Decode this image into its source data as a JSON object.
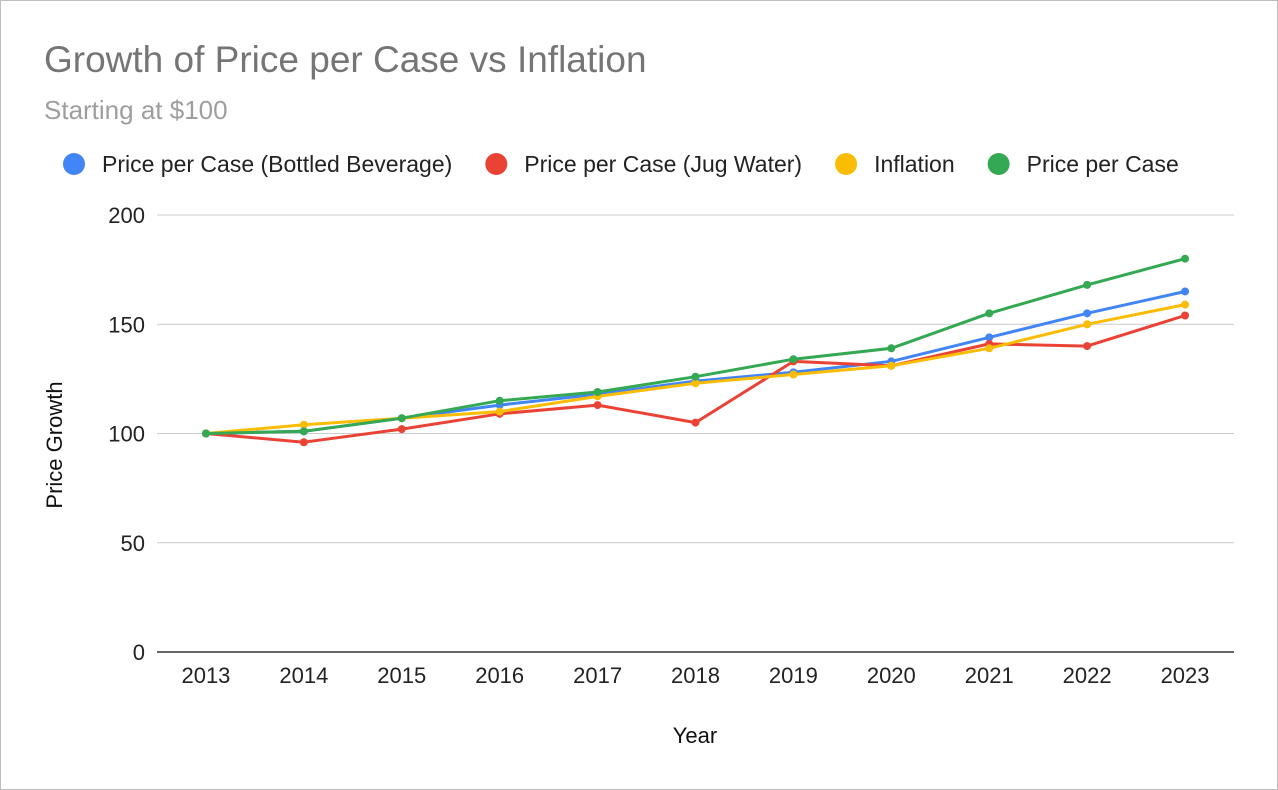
{
  "chart": {
    "title": "Growth of Price per Case vs Inflation",
    "subtitle": "Starting at $100"
  },
  "chart_data": {
    "type": "line",
    "title": "Growth of Price per Case vs Inflation",
    "subtitle": "Starting at $100",
    "xlabel": "Year",
    "ylabel": "Price Growth",
    "categories": [
      "2013",
      "2014",
      "2015",
      "2016",
      "2017",
      "2018",
      "2019",
      "2020",
      "2021",
      "2022",
      "2023"
    ],
    "ylim": [
      0,
      200
    ],
    "yticks": [
      0,
      50,
      100,
      150,
      200
    ],
    "grid": true,
    "legend_position": "top",
    "series": [
      {
        "name": "Price per Case (Bottled Beverage)",
        "color": "#4285f4",
        "values": [
          100,
          101,
          107,
          113,
          118,
          124,
          128,
          133,
          144,
          155,
          165
        ]
      },
      {
        "name": "Price per Case (Jug Water)",
        "color": "#ea4335",
        "values": [
          100,
          96,
          102,
          109,
          113,
          105,
          133,
          131,
          141,
          140,
          154
        ]
      },
      {
        "name": "Inflation",
        "color": "#fbbc04",
        "values": [
          100,
          104,
          107,
          110,
          117,
          123,
          127,
          131,
          139,
          150,
          159
        ]
      },
      {
        "name": "Price per Case",
        "color": "#34a853",
        "values": [
          100,
          101,
          107,
          115,
          119,
          126,
          134,
          139,
          155,
          168,
          180
        ]
      }
    ]
  }
}
